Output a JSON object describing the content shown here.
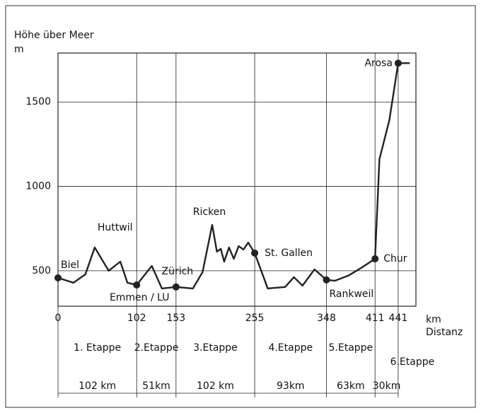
{
  "chart_data": {
    "type": "line",
    "y_label": "Höhe über Meer",
    "y_unit": "m",
    "x_unit": "km",
    "x_label": "Distanz",
    "x": [
      0,
      20,
      35.5,
      47.6,
      65.7,
      80.8,
      90,
      102,
      121.6,
      134.7,
      153,
      174.9,
      187.4,
      199.9,
      206,
      211,
      215.4,
      221.7,
      227.9,
      234.2,
      240.4,
      246.6,
      255,
      271.9,
      294.5,
      305.8,
      317,
      332.5,
      348,
      358.9,
      376.3,
      394.5,
      411,
      416.7,
      429.5,
      441,
      456
    ],
    "series": [
      {
        "color": "#222222",
        "values": [
          458,
          429,
          479,
          638,
          500,
          554,
          429,
          416,
          529,
          395,
          404,
          395,
          492,
          772,
          613,
          630,
          554,
          638,
          571,
          646,
          626,
          667,
          605,
          395,
          404,
          462,
          412,
          508,
          446,
          441,
          471,
          521,
          571,
          1161,
          1391,
          1730,
          1730
        ]
      }
    ],
    "annotations": [
      "Biel",
      "Huttwil",
      "Emmen / LU",
      "Zürich",
      "Ricken",
      "St. Gallen",
      "Rankweil",
      "Chur",
      "Arosa"
    ],
    "stages": [
      {
        "name": "1. Etappe",
        "distance": "102 km"
      },
      {
        "name": "2.Etappe",
        "distance": "51km"
      },
      {
        "name": "3.Etappe",
        "distance": "102 km"
      },
      {
        "name": "4.Etappe",
        "distance": "93km"
      },
      {
        "name": "5.Etappe",
        "distance": "63km"
      },
      {
        "name": "6.Etappe",
        "distance": "30km"
      }
    ],
    "xlim": [
      0,
      464
    ],
    "xticks": [
      0,
      102,
      153,
      255,
      348,
      411,
      441
    ],
    "ylim": [
      290,
      1790
    ],
    "yticks": [
      500,
      1000,
      1500
    ],
    "grid": true
  }
}
